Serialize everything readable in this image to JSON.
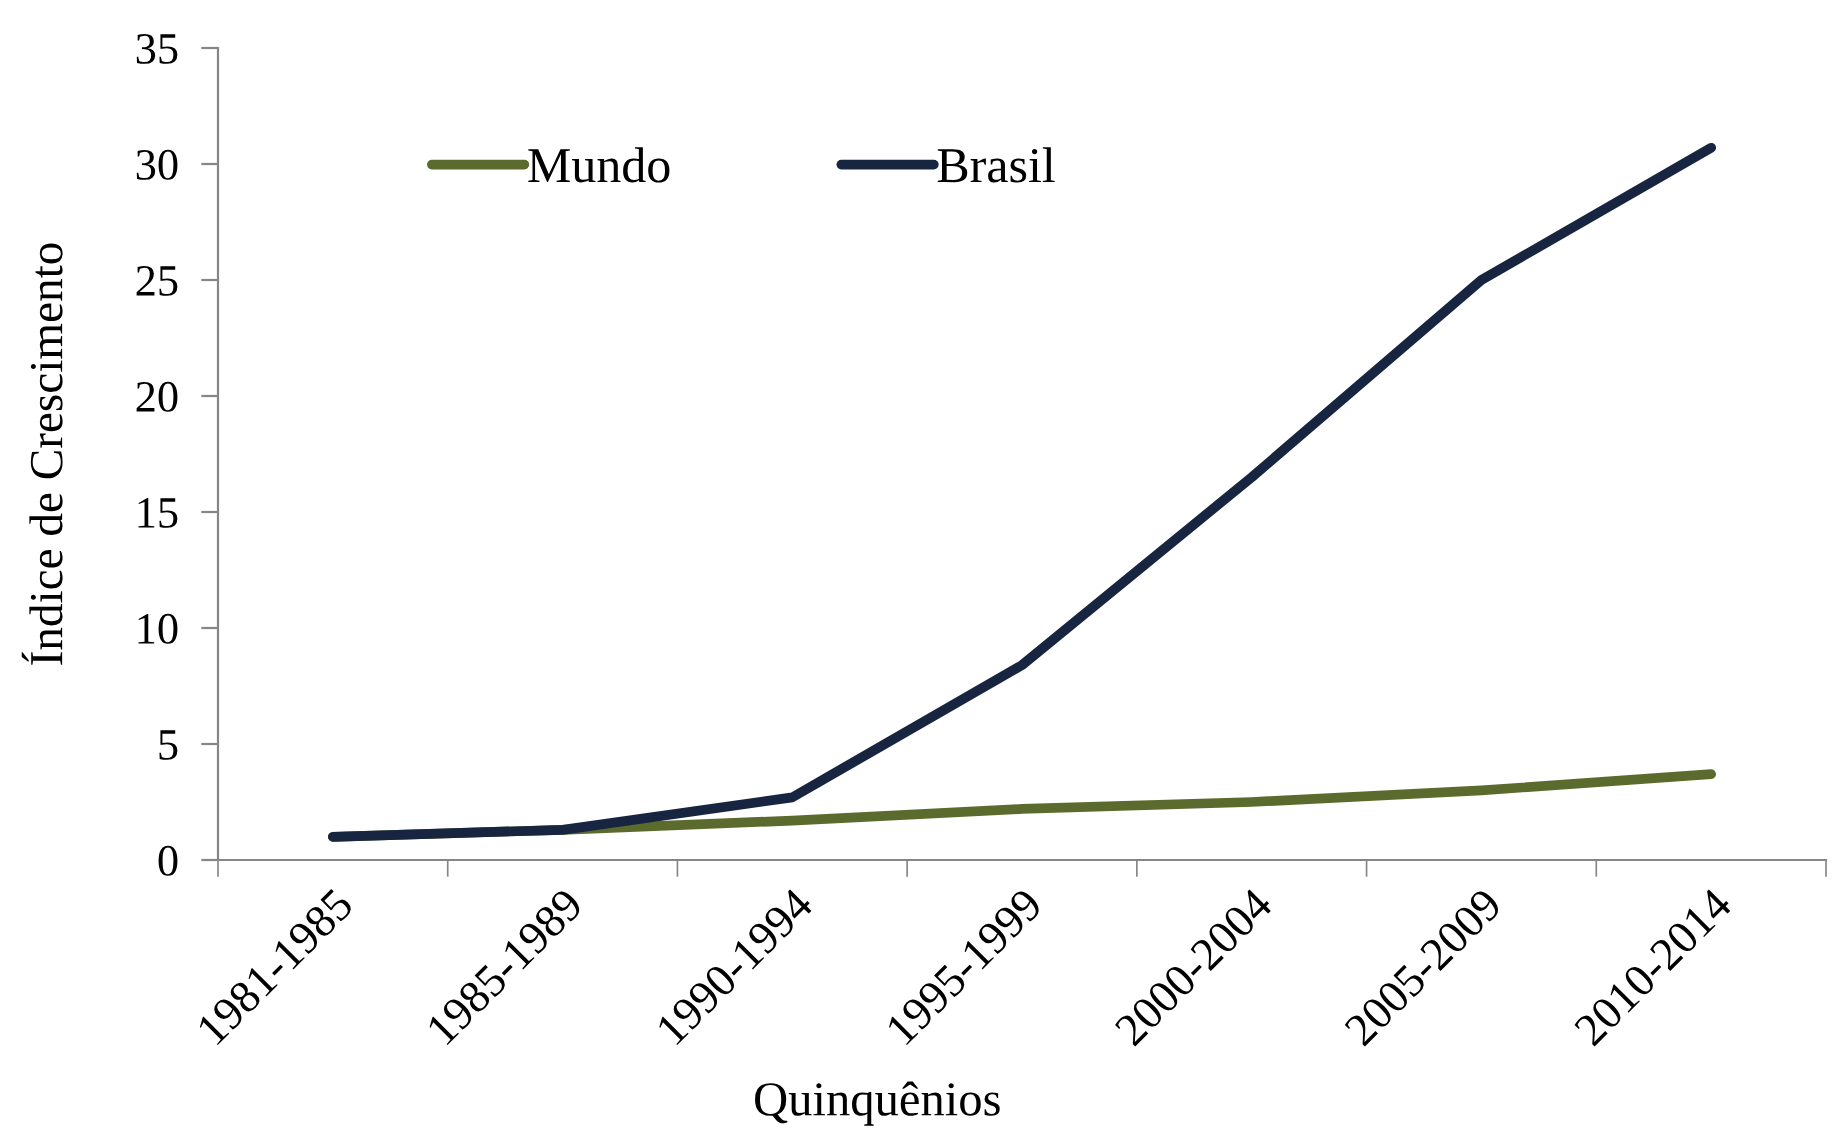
{
  "chart_data": {
    "type": "line",
    "xlabel": "Quinquênios",
    "ylabel": "Índice de Crescimento",
    "categories": [
      "1981-1985",
      "1985-1989",
      "1990-1994",
      "1995-1999",
      "2000-2004",
      "2005-2009",
      "2010-2014"
    ],
    "series": [
      {
        "name": "Mundo",
        "color": "#5b6b2d",
        "values": [
          1.0,
          1.3,
          1.7,
          2.2,
          2.5,
          3.0,
          3.7
        ]
      },
      {
        "name": "Brasil",
        "color": "#172540",
        "values": [
          1.0,
          1.3,
          2.7,
          8.4,
          16.5,
          25.0,
          30.7
        ]
      }
    ],
    "ylim": [
      0,
      35
    ],
    "yticks": [
      0,
      5,
      10,
      15,
      20,
      25,
      30,
      35
    ],
    "legend": "top left",
    "line_style": "solid"
  }
}
